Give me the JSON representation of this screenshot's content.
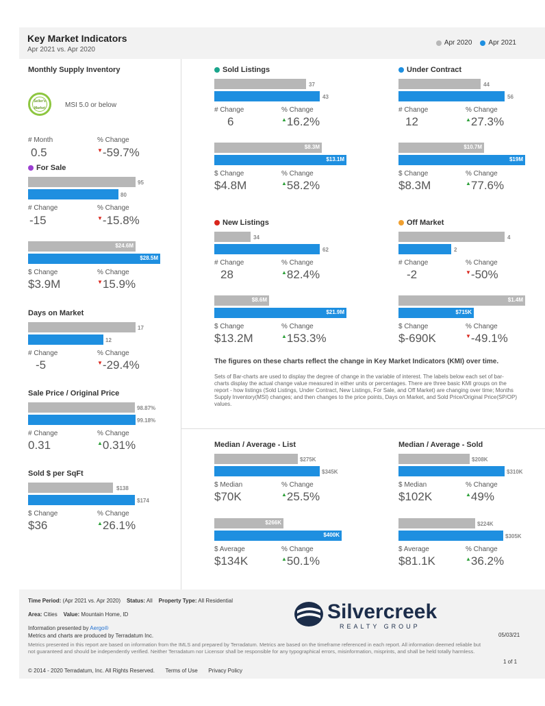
{
  "header": {
    "title": "Key Market Indicators",
    "subtitle": "Apr 2021 vs. Apr 2020",
    "legend": [
      {
        "label": "Apr 2020",
        "color": "#b7b7b7"
      },
      {
        "label": "Apr 2021",
        "color": "#1e8fe0"
      }
    ]
  },
  "msi": {
    "title": "Monthly Supply Inventory",
    "badge_text": "Seller's Market",
    "badge_caption": "MSI 5.0 or below",
    "labels": [
      "# Month",
      "% Change"
    ],
    "values": [
      "0.5",
      "-59.7%"
    ]
  },
  "for_sale": {
    "title": "For Sale",
    "dot_color": "#9b3fd1",
    "count_bars": [
      "95",
      "80"
    ],
    "count_labels": [
      "# Change",
      "% Change"
    ],
    "count_values": [
      "-15",
      "-15.8%"
    ],
    "dollar_bars": [
      "$24.6M",
      "$28.5M"
    ],
    "dollar_labels": [
      "$ Change",
      "% Change"
    ],
    "dollar_values": [
      "$3.9M",
      "15.9%"
    ]
  },
  "dom": {
    "title": "Days on Market",
    "bars": [
      "17",
      "12"
    ],
    "labels": [
      "# Change",
      "% Change"
    ],
    "values": [
      "-5",
      "-29.4%"
    ]
  },
  "spop": {
    "title": "Sale Price / Original Price",
    "bars": [
      "98.87%",
      "99.18%"
    ],
    "labels": [
      "# Change",
      "% Change"
    ],
    "values": [
      "0.31",
      "0.31%"
    ]
  },
  "sqft": {
    "title": "Sold $ per SqFt",
    "bars": [
      "$138",
      "$174"
    ],
    "labels": [
      "$ Change",
      "% Change"
    ],
    "values": [
      "$36",
      "26.1%"
    ]
  },
  "sold": {
    "title": "Sold Listings",
    "dot_color": "#1aa58c",
    "count_bars": [
      "37",
      "43"
    ],
    "count_labels": [
      "# Change",
      "% Change"
    ],
    "count_values": [
      "6",
      "16.2%"
    ],
    "dollar_bars": [
      "$8.3M",
      "$13.1M"
    ],
    "dollar_labels": [
      "$ Change",
      "% Change"
    ],
    "dollar_values": [
      "$4.8M",
      "58.2%"
    ]
  },
  "under_contract": {
    "title": "Under Contract",
    "dot_color": "#1e8fe0",
    "count_bars": [
      "44",
      "56"
    ],
    "count_labels": [
      "# Change",
      "% Change"
    ],
    "count_values": [
      "12",
      "27.3%"
    ],
    "dollar_bars": [
      "$10.7M",
      "$19M"
    ],
    "dollar_labels": [
      "$ Change",
      "% Change"
    ],
    "dollar_values": [
      "$8.3M",
      "77.6%"
    ]
  },
  "new_listings": {
    "title": "New Listings",
    "dot_color": "#d9261c",
    "count_bars": [
      "34",
      "62"
    ],
    "count_labels": [
      "# Change",
      "% Change"
    ],
    "count_values": [
      "28",
      "82.4%"
    ],
    "dollar_bars": [
      "$8.6M",
      "$21.9M"
    ],
    "dollar_labels": [
      "$ Change",
      "% Change"
    ],
    "dollar_values": [
      "$13.2M",
      "153.3%"
    ]
  },
  "off_market": {
    "title": "Off Market",
    "dot_color": "#f0a030",
    "count_bars": [
      "4",
      "2"
    ],
    "count_labels": [
      "# Change",
      "% Change"
    ],
    "count_values": [
      "-2",
      "-50%"
    ],
    "dollar_bars": [
      "$1.4M",
      "$715K"
    ],
    "dollar_labels": [
      "$ Change",
      "% Change"
    ],
    "dollar_values": [
      "$-690K",
      "-49.1%"
    ]
  },
  "notes": {
    "headline": "The figures on these charts reflect the change in Key Market Indicators (KMI) over time.",
    "body": "Sets of Bar-charts are used to display the degree of change in the variable of interest. The labels below each set of bar-charts display the actual change value measured in either units or percentages. There are three basic KMI groups on the report - how listings (Sold Listings, Under Contract, New Listings, For Sale, and Off Market) are changing over time; Months Supply Inventory(MSI) changes; and then changes to the price points, Days on Market, and Sold Price/Original Price(SP/OP) values."
  },
  "med_list": {
    "title": "Median / Average - List",
    "median_bars": [
      "$275K",
      "$345K"
    ],
    "median_labels": [
      "$ Median",
      "% Change"
    ],
    "median_values": [
      "$70K",
      "25.5%"
    ],
    "avg_bars": [
      "$266K",
      "$400K"
    ],
    "avg_labels": [
      "$ Average",
      "% Change"
    ],
    "avg_values": [
      "$134K",
      "50.1%"
    ]
  },
  "med_sold": {
    "title": "Median / Average - Sold",
    "median_bars": [
      "$208K",
      "$310K"
    ],
    "median_labels": [
      "$ Median",
      "% Change"
    ],
    "median_values": [
      "$102K",
      "49%"
    ],
    "avg_bars": [
      "$224K",
      "$305K"
    ],
    "avg_labels": [
      "$ Average",
      "% Change"
    ],
    "avg_values": [
      "$81.1K",
      "36.2%"
    ]
  },
  "footer": {
    "time_period_label": "Time Period:",
    "time_period_value": "(Apr 2021 vs. Apr 2020)",
    "status_label": "Status:",
    "status_value": "All",
    "ptype_label": "Property Type:",
    "ptype_value": "All Residential",
    "area_label": "Area:",
    "area_value": "Cities",
    "value_label": "Value:",
    "value_value": "Mountain Home, ID",
    "presented_prefix": "Information presented by",
    "presented_by": "Aergo®",
    "produced_by": "Metrics and charts are produced by Terradatum Inc.",
    "disclaimer": "Metrics presented in this report are based on information from the IMLS and prepared by Terradatum. Metrics are based on the timeframe referenced in each report. All information deemed reliable but not guaranteed and should be independently verified. Neither Terradatum nor Licensor shall be responsible for any typographical errors, misinformation, misprints, and shall be held totally harmless.",
    "copyright": "© 2014 - 2020 Terradatum, Inc. All Rights Reserved.",
    "terms": "Terms of Use",
    "privacy": "Privacy Policy",
    "date": "05/03/21",
    "page": "1 of 1",
    "logo_text": "Silvercreek",
    "logo_sub": "REALTY GROUP"
  }
}
